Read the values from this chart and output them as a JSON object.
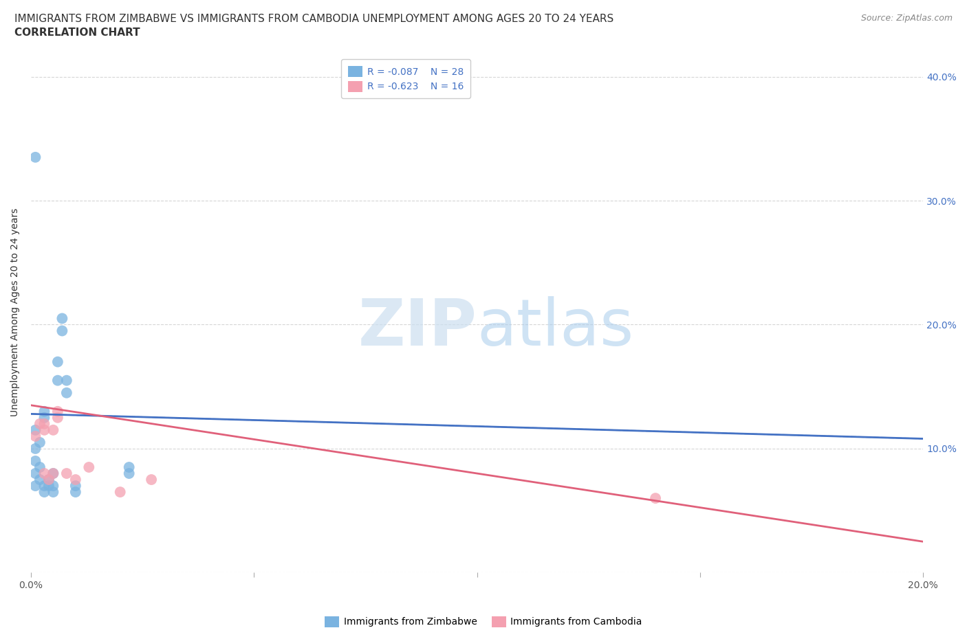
{
  "title_line1": "IMMIGRANTS FROM ZIMBABWE VS IMMIGRANTS FROM CAMBODIA UNEMPLOYMENT AMONG AGES 20 TO 24 YEARS",
  "title_line2": "CORRELATION CHART",
  "source": "Source: ZipAtlas.com",
  "ylabel": "Unemployment Among Ages 20 to 24 years",
  "xlim": [
    0.0,
    0.2
  ],
  "ylim": [
    0.0,
    0.42
  ],
  "xtick_vals": [
    0.0,
    0.05,
    0.1,
    0.15,
    0.2
  ],
  "xtick_labels": [
    "0.0%",
    "",
    "",
    "",
    "20.0%"
  ],
  "yticks": [
    0.0,
    0.1,
    0.2,
    0.3,
    0.4
  ],
  "ytick_labels_right": [
    "",
    "10.0%",
    "20.0%",
    "30.0%",
    "40.0%"
  ],
  "zimbabwe_color": "#7ab3e0",
  "cambodia_color": "#f4a0b0",
  "line_zimbabwe_color": "#4472c4",
  "line_cambodia_color": "#e0607a",
  "legend_r_zimbabwe": "R = -0.087",
  "legend_n_zimbabwe": "N = 28",
  "legend_r_cambodia": "R = -0.623",
  "legend_n_cambodia": "N = 16",
  "zimbabwe_x": [
    0.001,
    0.001,
    0.001,
    0.001,
    0.001,
    0.002,
    0.002,
    0.002,
    0.003,
    0.003,
    0.003,
    0.003,
    0.004,
    0.004,
    0.005,
    0.005,
    0.005,
    0.006,
    0.006,
    0.007,
    0.007,
    0.008,
    0.008,
    0.01,
    0.01,
    0.022,
    0.022,
    0.001
  ],
  "zimbabwe_y": [
    0.07,
    0.08,
    0.09,
    0.1,
    0.115,
    0.075,
    0.085,
    0.105,
    0.065,
    0.07,
    0.125,
    0.13,
    0.07,
    0.075,
    0.065,
    0.07,
    0.08,
    0.155,
    0.17,
    0.195,
    0.205,
    0.145,
    0.155,
    0.065,
    0.07,
    0.085,
    0.08,
    0.335
  ],
  "cambodia_x": [
    0.001,
    0.002,
    0.003,
    0.003,
    0.004,
    0.005,
    0.005,
    0.006,
    0.006,
    0.008,
    0.01,
    0.013,
    0.02,
    0.027,
    0.14,
    0.003
  ],
  "cambodia_y": [
    0.11,
    0.12,
    0.115,
    0.08,
    0.075,
    0.08,
    0.115,
    0.125,
    0.13,
    0.08,
    0.075,
    0.085,
    0.065,
    0.075,
    0.06,
    0.12
  ],
  "title_fontsize": 11,
  "axis_label_fontsize": 10,
  "tick_fontsize": 10,
  "legend_fontsize": 10
}
